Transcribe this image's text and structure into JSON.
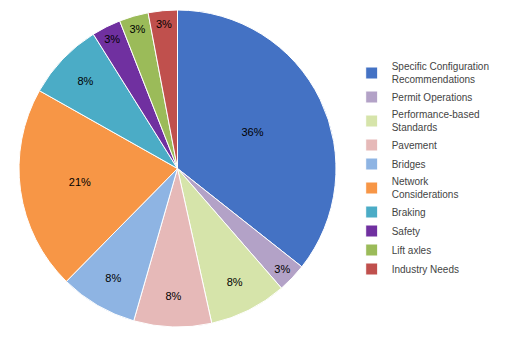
{
  "chart_data": {
    "type": "pie",
    "categories": [
      "Specific Configuration\nRecommendations",
      "Permit Operations",
      "Performance-based\nStandards",
      "Pavement",
      "Bridges",
      "Network\nConsiderations",
      "Braking",
      "Safety",
      "Lift axles",
      "Industry Needs"
    ],
    "values": [
      36,
      3,
      8,
      8,
      8,
      21,
      8,
      3,
      3,
      3
    ],
    "value_labels": [
      "36%",
      "3%",
      "8%",
      "8%",
      "8%",
      "21%",
      "8%",
      "3%",
      "3%",
      "3%"
    ],
    "colors": [
      "#4472C4",
      "#B3A2C7",
      "#D6E4AA",
      "#E6B9B8",
      "#8EB4E3",
      "#F79646",
      "#4BACC6",
      "#7030A0",
      "#9BBB59",
      "#C0504D"
    ],
    "data_labels": true,
    "legend": "right"
  }
}
